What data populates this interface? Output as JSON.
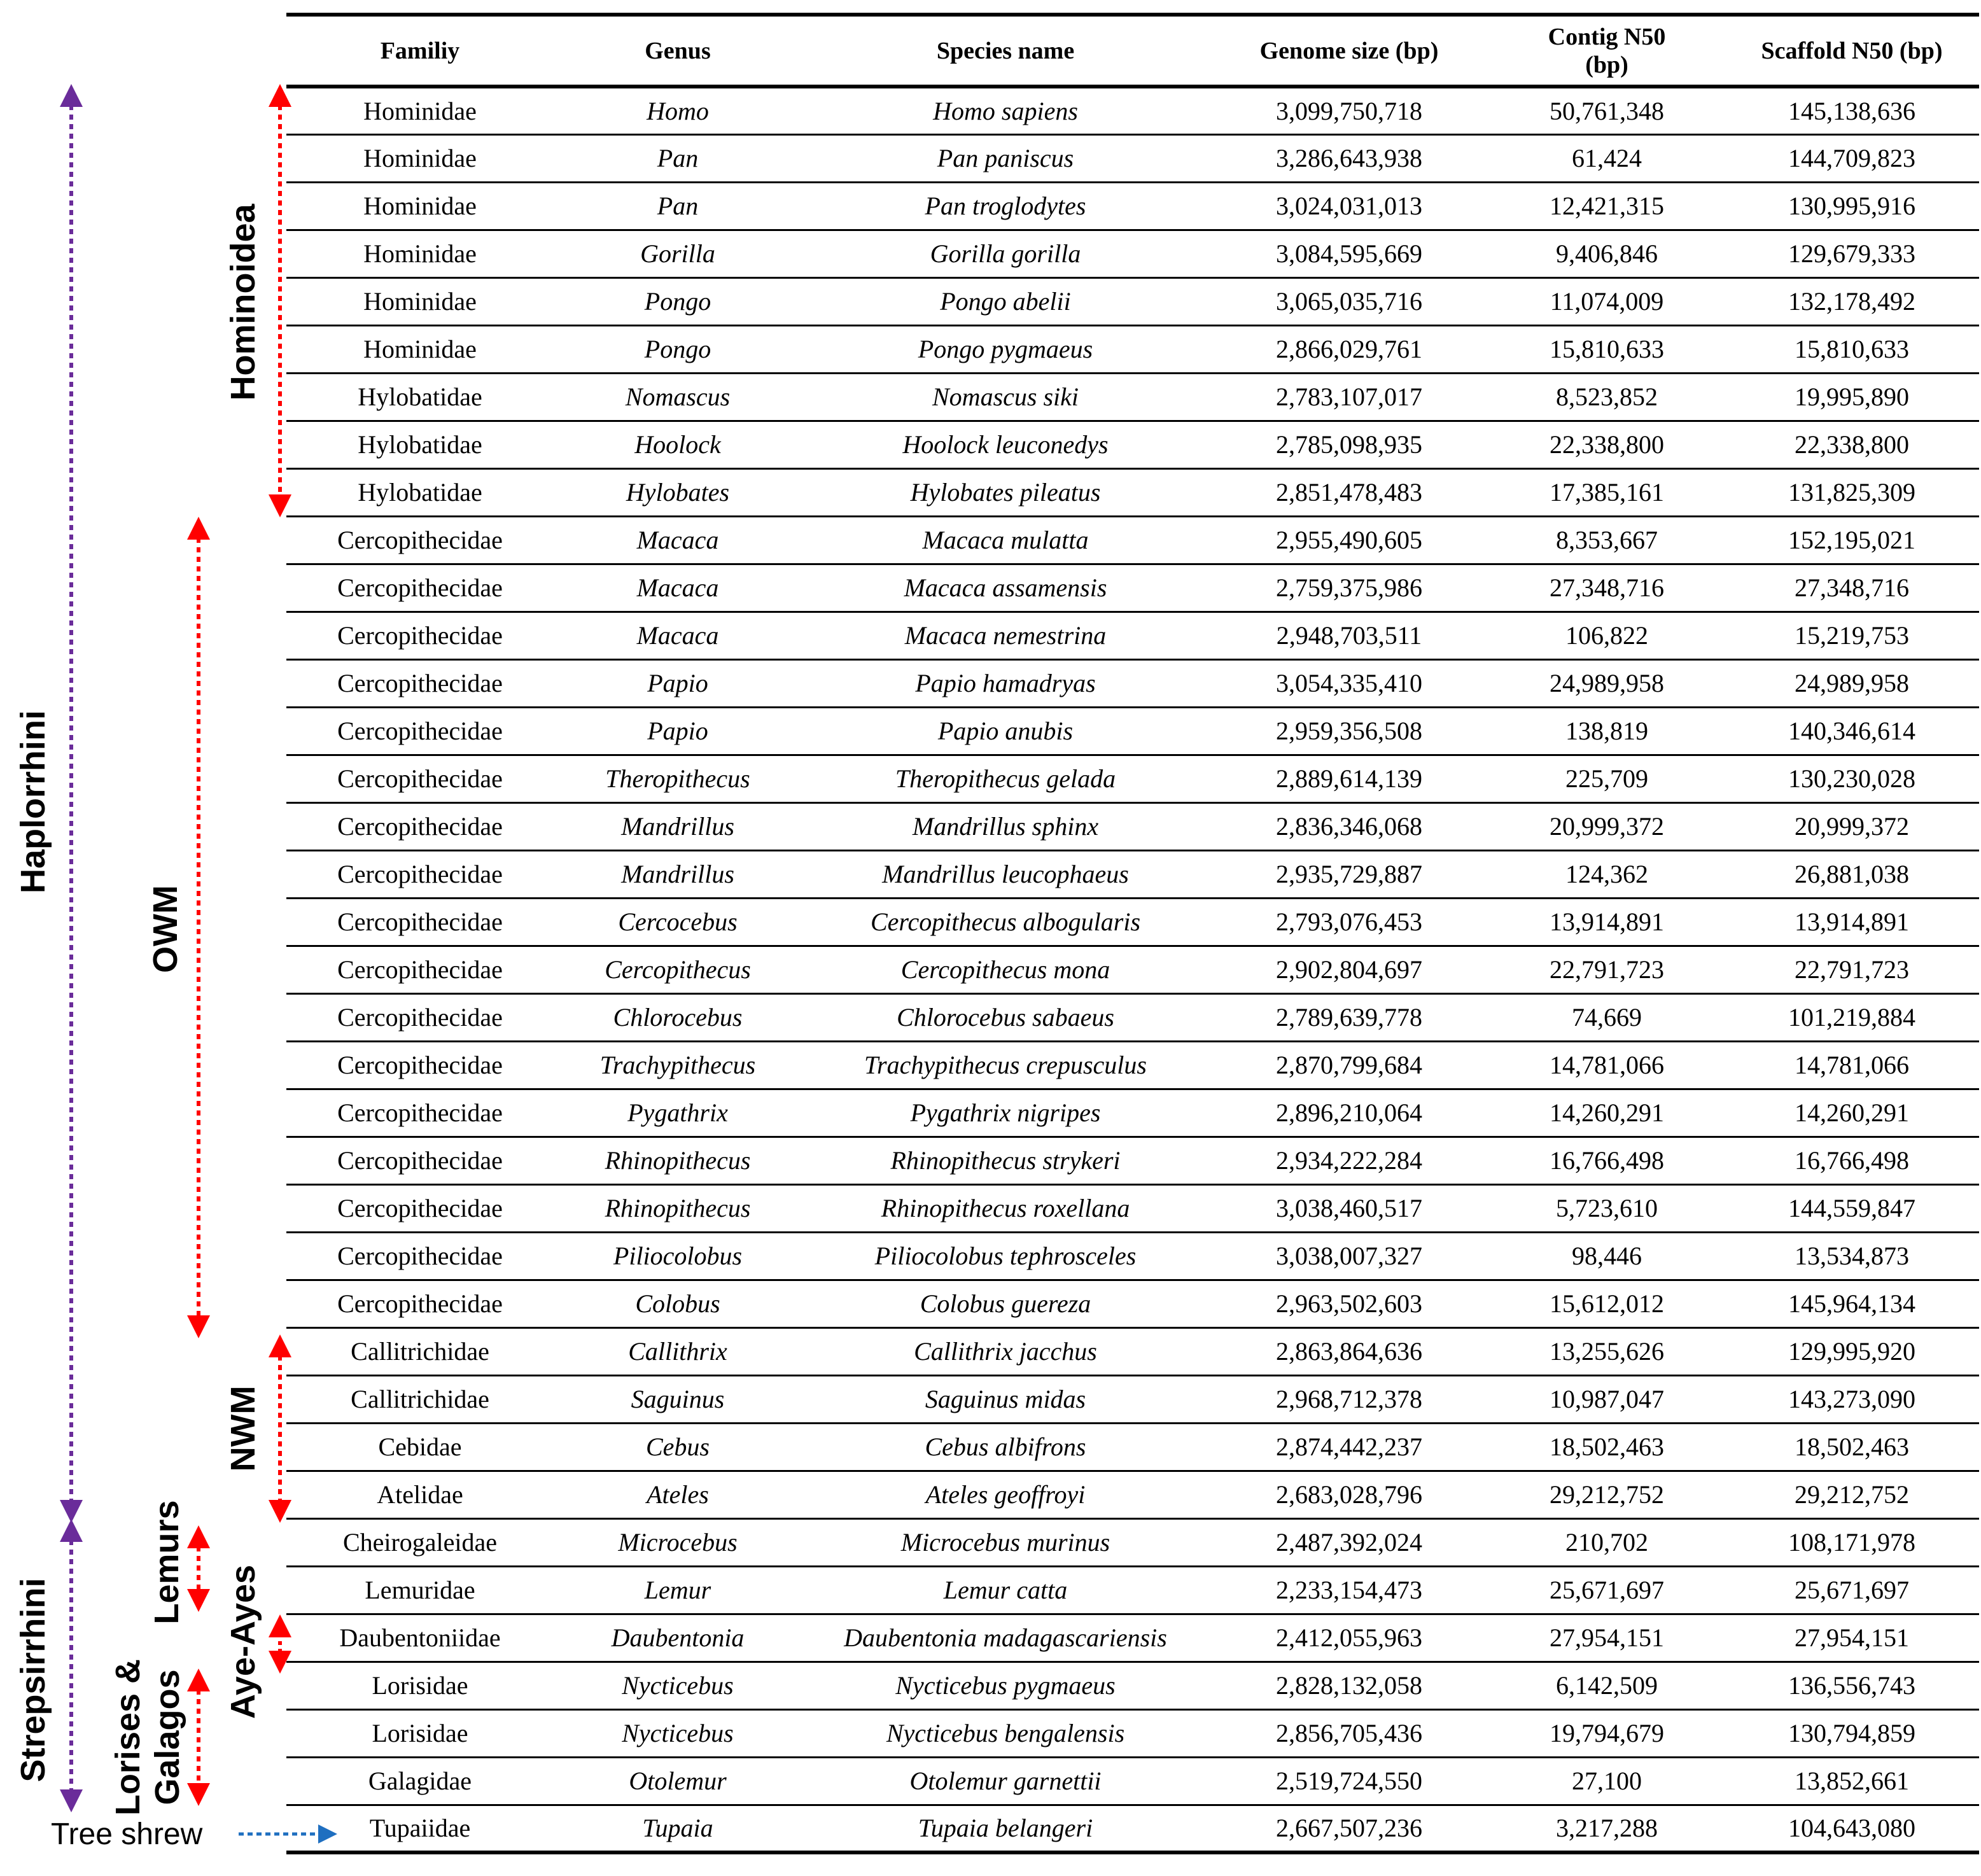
{
  "table": {
    "headers": {
      "family": "Familiy",
      "genus": "Genus",
      "species": "Species name",
      "genome_size": "Genome size (bp)",
      "contig_n50": "Contig N50 (bp)",
      "scaffold_n50": "Scaffold N50 (bp)"
    },
    "rows": [
      {
        "family": "Hominidae",
        "genus": "Homo",
        "species": "Homo sapiens",
        "genome_size": "3,099,750,718",
        "contig_n50": "50,761,348",
        "scaffold_n50": "145,138,636"
      },
      {
        "family": "Hominidae",
        "genus": "Pan",
        "species": "Pan paniscus",
        "genome_size": "3,286,643,938",
        "contig_n50": "61,424",
        "scaffold_n50": "144,709,823"
      },
      {
        "family": "Hominidae",
        "genus": "Pan",
        "species": "Pan troglodytes",
        "genome_size": "3,024,031,013",
        "contig_n50": "12,421,315",
        "scaffold_n50": "130,995,916"
      },
      {
        "family": "Hominidae",
        "genus": "Gorilla",
        "species": "Gorilla gorilla",
        "genome_size": "3,084,595,669",
        "contig_n50": "9,406,846",
        "scaffold_n50": "129,679,333"
      },
      {
        "family": "Hominidae",
        "genus": "Pongo",
        "species": "Pongo abelii",
        "genome_size": "3,065,035,716",
        "contig_n50": "11,074,009",
        "scaffold_n50": "132,178,492"
      },
      {
        "family": "Hominidae",
        "genus": "Pongo",
        "species": "Pongo pygmaeus",
        "genome_size": "2,866,029,761",
        "contig_n50": "15,810,633",
        "scaffold_n50": "15,810,633"
      },
      {
        "family": "Hylobatidae",
        "genus": "Nomascus",
        "species": "Nomascus siki",
        "genome_size": "2,783,107,017",
        "contig_n50": "8,523,852",
        "scaffold_n50": "19,995,890"
      },
      {
        "family": "Hylobatidae",
        "genus": "Hoolock",
        "species": "Hoolock leuconedys",
        "genome_size": "2,785,098,935",
        "contig_n50": "22,338,800",
        "scaffold_n50": "22,338,800"
      },
      {
        "family": "Hylobatidae",
        "genus": "Hylobates",
        "species": "Hylobates pileatus",
        "genome_size": "2,851,478,483",
        "contig_n50": "17,385,161",
        "scaffold_n50": "131,825,309"
      },
      {
        "family": "Cercopithecidae",
        "genus": "Macaca",
        "species": "Macaca mulatta",
        "genome_size": "2,955,490,605",
        "contig_n50": "8,353,667",
        "scaffold_n50": "152,195,021"
      },
      {
        "family": "Cercopithecidae",
        "genus": "Macaca",
        "species": "Macaca assamensis",
        "genome_size": "2,759,375,986",
        "contig_n50": "27,348,716",
        "scaffold_n50": "27,348,716"
      },
      {
        "family": "Cercopithecidae",
        "genus": "Macaca",
        "species": "Macaca nemestrina",
        "genome_size": "2,948,703,511",
        "contig_n50": "106,822",
        "scaffold_n50": "15,219,753"
      },
      {
        "family": "Cercopithecidae",
        "genus": "Papio",
        "species": "Papio hamadryas",
        "genome_size": "3,054,335,410",
        "contig_n50": "24,989,958",
        "scaffold_n50": "24,989,958"
      },
      {
        "family": "Cercopithecidae",
        "genus": "Papio",
        "species": "Papio anubis",
        "genome_size": "2,959,356,508",
        "contig_n50": "138,819",
        "scaffold_n50": "140,346,614"
      },
      {
        "family": "Cercopithecidae",
        "genus": "Theropithecus",
        "species": "Theropithecus gelada",
        "genome_size": "2,889,614,139",
        "contig_n50": "225,709",
        "scaffold_n50": "130,230,028"
      },
      {
        "family": "Cercopithecidae",
        "genus": "Mandrillus",
        "species": "Mandrillus sphinx",
        "genome_size": "2,836,346,068",
        "contig_n50": "20,999,372",
        "scaffold_n50": "20,999,372"
      },
      {
        "family": "Cercopithecidae",
        "genus": "Mandrillus",
        "species": "Mandrillus leucophaeus",
        "genome_size": "2,935,729,887",
        "contig_n50": "124,362",
        "scaffold_n50": "26,881,038"
      },
      {
        "family": "Cercopithecidae",
        "genus": "Cercocebus",
        "species": "Cercopithecus albogularis",
        "genome_size": "2,793,076,453",
        "contig_n50": "13,914,891",
        "scaffold_n50": "13,914,891"
      },
      {
        "family": "Cercopithecidae",
        "genus": "Cercopithecus",
        "species": "Cercopithecus mona",
        "genome_size": "2,902,804,697",
        "contig_n50": "22,791,723",
        "scaffold_n50": "22,791,723"
      },
      {
        "family": "Cercopithecidae",
        "genus": "Chlorocebus",
        "species": "Chlorocebus sabaeus",
        "genome_size": "2,789,639,778",
        "contig_n50": "74,669",
        "scaffold_n50": "101,219,884"
      },
      {
        "family": "Cercopithecidae",
        "genus": "Trachypithecus",
        "species": "Trachypithecus crepusculus",
        "genome_size": "2,870,799,684",
        "contig_n50": "14,781,066",
        "scaffold_n50": "14,781,066"
      },
      {
        "family": "Cercopithecidae",
        "genus": "Pygathrix",
        "species": "Pygathrix nigripes",
        "genome_size": "2,896,210,064",
        "contig_n50": "14,260,291",
        "scaffold_n50": "14,260,291"
      },
      {
        "family": "Cercopithecidae",
        "genus": "Rhinopithecus",
        "species": "Rhinopithecus strykeri",
        "genome_size": "2,934,222,284",
        "contig_n50": "16,766,498",
        "scaffold_n50": "16,766,498"
      },
      {
        "family": "Cercopithecidae",
        "genus": "Rhinopithecus",
        "species": "Rhinopithecus roxellana",
        "genome_size": "3,038,460,517",
        "contig_n50": "5,723,610",
        "scaffold_n50": "144,559,847"
      },
      {
        "family": "Cercopithecidae",
        "genus": "Piliocolobus",
        "species": "Piliocolobus tephrosceles",
        "genome_size": "3,038,007,327",
        "contig_n50": "98,446",
        "scaffold_n50": "13,534,873"
      },
      {
        "family": "Cercopithecidae",
        "genus": "Colobus",
        "species": "Colobus guereza",
        "genome_size": "2,963,502,603",
        "contig_n50": "15,612,012",
        "scaffold_n50": "145,964,134"
      },
      {
        "family": "Callitrichidae",
        "genus": "Callithrix",
        "species": "Callithrix jacchus",
        "genome_size": "2,863,864,636",
        "contig_n50": "13,255,626",
        "scaffold_n50": "129,995,920"
      },
      {
        "family": "Callitrichidae",
        "genus": "Saguinus",
        "species": "Saguinus midas",
        "genome_size": "2,968,712,378",
        "contig_n50": "10,987,047",
        "scaffold_n50": "143,273,090"
      },
      {
        "family": "Cebidae",
        "genus": "Cebus",
        "species": "Cebus albifrons",
        "genome_size": "2,874,442,237",
        "contig_n50": "18,502,463",
        "scaffold_n50": "18,502,463"
      },
      {
        "family": "Atelidae",
        "genus": "Ateles",
        "species": "Ateles geoffroyi",
        "genome_size": "2,683,028,796",
        "contig_n50": "29,212,752",
        "scaffold_n50": "29,212,752"
      },
      {
        "family": "Cheirogaleidae",
        "genus": "Microcebus",
        "species": "Microcebus murinus",
        "genome_size": "2,487,392,024",
        "contig_n50": "210,702",
        "scaffold_n50": "108,171,978"
      },
      {
        "family": "Lemuridae",
        "genus": "Lemur",
        "species": "Lemur catta",
        "genome_size": "2,233,154,473",
        "contig_n50": "25,671,697",
        "scaffold_n50": "25,671,697"
      },
      {
        "family": "Daubentoniidae",
        "genus": "Daubentonia",
        "species": "Daubentonia madagascariensis",
        "genome_size": "2,412,055,963",
        "contig_n50": "27,954,151",
        "scaffold_n50": "27,954,151"
      },
      {
        "family": "Lorisidae",
        "genus": "Nycticebus",
        "species": "Nycticebus pygmaeus",
        "genome_size": "2,828,132,058",
        "contig_n50": "6,142,509",
        "scaffold_n50": "136,556,743"
      },
      {
        "family": "Lorisidae",
        "genus": "Nycticebus",
        "species": "Nycticebus bengalensis",
        "genome_size": "2,856,705,436",
        "contig_n50": "19,794,679",
        "scaffold_n50": "130,794,859"
      },
      {
        "family": "Galagidae",
        "genus": "Otolemur",
        "species": "Otolemur garnettii",
        "genome_size": "2,519,724,550",
        "contig_n50": "27,100",
        "scaffold_n50": "13,852,661"
      },
      {
        "family": "Tupaiidae",
        "genus": "Tupaia",
        "species": "Tupaia belangeri",
        "genome_size": "2,667,507,236",
        "contig_n50": "3,217,288",
        "scaffold_n50": "104,643,080"
      }
    ]
  },
  "groups": {
    "haplorrhini": "Haplorrhini",
    "strepsirrhini": "Strepsirrhini",
    "hominoidea": "Hominoidea",
    "owm": "OWM",
    "nwm": "NWM",
    "lemurs": "Lemurs",
    "aye_ayes": "Aye-Ayes",
    "lorises_line1": "Lorises &",
    "lorises_line2": "Galagos",
    "tree_shrew": "Tree shrew"
  },
  "colors": {
    "purple_arrow": "#6a2c9a",
    "red_arrow": "#ff0000",
    "blue_arrow": "#1f6fc0"
  }
}
